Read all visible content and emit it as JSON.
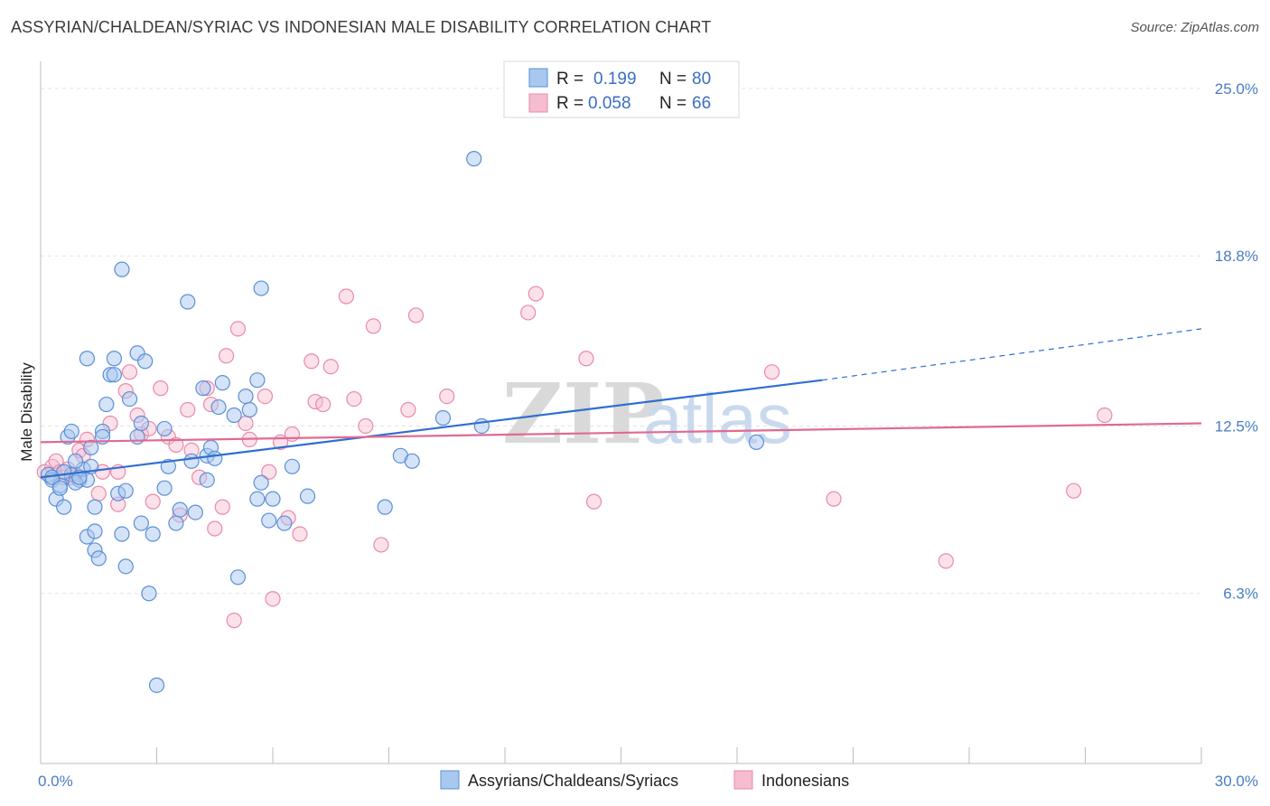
{
  "header": {
    "title": "ASSYRIAN/CHALDEAN/SYRIAC VS INDONESIAN MALE DISABILITY CORRELATION CHART",
    "source": "Source: ZipAtlas.com"
  },
  "watermark": {
    "zip": "ZIP",
    "atlas": "atlas"
  },
  "colors": {
    "blue_fill": "#a9c8f0",
    "blue_stroke": "#5b8fd6",
    "blue_line": "#2f6fcf",
    "pink_fill": "#f6bcd0",
    "pink_stroke": "#e88aaa",
    "pink_line": "#e06a92",
    "grid": "#e3e3e3",
    "tick_text": "#4a7cc4"
  },
  "legend": {
    "rows": [
      {
        "r_label": "R =",
        "r_value": "0.199",
        "n_label": "N =",
        "n_value": "80"
      },
      {
        "r_label": "R =",
        "r_value": "0.058",
        "n_label": "N =",
        "n_value": "66"
      }
    ]
  },
  "chart_data": {
    "type": "scatter",
    "title": "ASSYRIAN/CHALDEAN/SYRIAC VS INDONESIAN MALE DISABILITY CORRELATION CHART",
    "ylabel": "Male Disability",
    "xlim": [
      0,
      30
    ],
    "ylim": [
      0,
      25.6
    ],
    "x_tick_labels": [
      "0.0%",
      "30.0%"
    ],
    "y_ticks": [
      6.3,
      12.5,
      18.8,
      25.0
    ],
    "y_tick_labels": [
      "6.3%",
      "12.5%",
      "18.8%",
      "25.0%"
    ],
    "grid": true,
    "legend_position": "top-center",
    "series": [
      {
        "name": "Assyrians/Chaldeans/Syriacs",
        "color": "#5b8fd6",
        "trend": {
          "x0": 0,
          "y0": 10.6,
          "x1": 20.2,
          "y1": 14.2,
          "dash_x1": 30,
          "dash_y1": 16.1
        },
        "points": [
          [
            0.2,
            10.7
          ],
          [
            0.3,
            10.5
          ],
          [
            0.5,
            10.3
          ],
          [
            0.4,
            9.8
          ],
          [
            0.6,
            9.5
          ],
          [
            0.8,
            10.7
          ],
          [
            1.0,
            10.5
          ],
          [
            1.1,
            10.9
          ],
          [
            1.2,
            10.5
          ],
          [
            0.9,
            10.4
          ],
          [
            0.7,
            12.1
          ],
          [
            0.8,
            12.3
          ],
          [
            1.2,
            8.4
          ],
          [
            1.4,
            7.9
          ],
          [
            1.5,
            7.6
          ],
          [
            1.4,
            9.5
          ],
          [
            1.4,
            8.6
          ],
          [
            1.6,
            12.3
          ],
          [
            1.7,
            13.3
          ],
          [
            1.8,
            14.4
          ],
          [
            1.9,
            14.4
          ],
          [
            1.9,
            15.0
          ],
          [
            1.2,
            15.0
          ],
          [
            1.3,
            11.7
          ],
          [
            2.0,
            10.0
          ],
          [
            2.2,
            10.1
          ],
          [
            2.2,
            7.3
          ],
          [
            2.1,
            8.5
          ],
          [
            2.3,
            13.5
          ],
          [
            2.5,
            12.1
          ],
          [
            2.6,
            12.6
          ],
          [
            2.5,
            15.2
          ],
          [
            2.7,
            14.9
          ],
          [
            2.6,
            8.9
          ],
          [
            2.9,
            8.5
          ],
          [
            2.8,
            6.3
          ],
          [
            3.0,
            2.9
          ],
          [
            3.2,
            10.2
          ],
          [
            3.3,
            11.0
          ],
          [
            3.5,
            8.9
          ],
          [
            3.6,
            9.4
          ],
          [
            3.8,
            17.1
          ],
          [
            3.9,
            11.2
          ],
          [
            4.0,
            9.3
          ],
          [
            4.2,
            13.9
          ],
          [
            4.3,
            11.4
          ],
          [
            4.4,
            11.7
          ],
          [
            4.5,
            11.3
          ],
          [
            4.7,
            14.1
          ],
          [
            5.0,
            12.9
          ],
          [
            5.1,
            6.9
          ],
          [
            5.3,
            13.6
          ],
          [
            5.4,
            13.1
          ],
          [
            5.6,
            9.8
          ],
          [
            5.6,
            14.2
          ],
          [
            5.7,
            10.4
          ],
          [
            5.9,
            9.0
          ],
          [
            6.0,
            9.8
          ],
          [
            6.3,
            8.9
          ],
          [
            6.5,
            11.0
          ],
          [
            6.9,
            9.9
          ],
          [
            5.7,
            17.6
          ],
          [
            1.6,
            12.1
          ],
          [
            2.1,
            18.3
          ],
          [
            3.2,
            12.4
          ],
          [
            8.9,
            9.5
          ],
          [
            9.3,
            11.4
          ],
          [
            9.6,
            11.2
          ],
          [
            10.4,
            12.8
          ],
          [
            11.4,
            12.5
          ],
          [
            11.2,
            22.4
          ],
          [
            18.5,
            11.9
          ],
          [
            0.3,
            10.6
          ],
          [
            0.5,
            10.2
          ],
          [
            0.6,
            10.8
          ],
          [
            1.0,
            10.6
          ],
          [
            1.3,
            11.0
          ],
          [
            4.3,
            10.5
          ],
          [
            0.9,
            11.2
          ],
          [
            4.6,
            13.2
          ]
        ]
      },
      {
        "name": "Indonesians",
        "color": "#e88aaa",
        "trend": {
          "x0": 0,
          "y0": 11.9,
          "x1": 30,
          "y1": 12.6
        },
        "points": [
          [
            0.1,
            10.8
          ],
          [
            0.3,
            11.0
          ],
          [
            0.4,
            11.2
          ],
          [
            0.5,
            10.8
          ],
          [
            0.6,
            10.6
          ],
          [
            0.7,
            10.9
          ],
          [
            0.8,
            10.6
          ],
          [
            0.9,
            10.7
          ],
          [
            1.0,
            11.6
          ],
          [
            1.1,
            11.4
          ],
          [
            1.2,
            12.0
          ],
          [
            1.5,
            10.0
          ],
          [
            1.8,
            12.6
          ],
          [
            2.0,
            10.8
          ],
          [
            2.2,
            13.8
          ],
          [
            2.3,
            14.5
          ],
          [
            2.5,
            12.9
          ],
          [
            2.6,
            12.2
          ],
          [
            2.8,
            12.4
          ],
          [
            2.9,
            9.7
          ],
          [
            3.1,
            13.9
          ],
          [
            3.3,
            12.1
          ],
          [
            3.5,
            11.8
          ],
          [
            3.6,
            9.2
          ],
          [
            3.8,
            13.1
          ],
          [
            3.9,
            11.6
          ],
          [
            4.1,
            10.6
          ],
          [
            4.3,
            13.9
          ],
          [
            4.4,
            13.3
          ],
          [
            4.5,
            8.7
          ],
          [
            4.7,
            9.5
          ],
          [
            4.8,
            15.1
          ],
          [
            5.0,
            5.3
          ],
          [
            5.1,
            16.1
          ],
          [
            5.3,
            12.6
          ],
          [
            5.4,
            12.0
          ],
          [
            5.8,
            13.6
          ],
          [
            5.9,
            10.8
          ],
          [
            6.0,
            6.1
          ],
          [
            6.2,
            11.9
          ],
          [
            6.5,
            12.2
          ],
          [
            6.4,
            9.1
          ],
          [
            6.7,
            8.5
          ],
          [
            7.0,
            14.9
          ],
          [
            7.1,
            13.4
          ],
          [
            7.3,
            13.3
          ],
          [
            7.5,
            14.7
          ],
          [
            7.9,
            17.3
          ],
          [
            8.1,
            13.5
          ],
          [
            8.4,
            12.5
          ],
          [
            8.6,
            16.2
          ],
          [
            8.8,
            8.1
          ],
          [
            9.5,
            13.1
          ],
          [
            9.7,
            16.6
          ],
          [
            10.5,
            13.6
          ],
          [
            12.6,
            16.7
          ],
          [
            12.8,
            17.4
          ],
          [
            14.1,
            15.0
          ],
          [
            14.3,
            9.7
          ],
          [
            18.9,
            14.5
          ],
          [
            20.5,
            9.8
          ],
          [
            23.4,
            7.5
          ],
          [
            26.7,
            10.1
          ],
          [
            27.5,
            12.9
          ],
          [
            1.6,
            10.8
          ],
          [
            2.0,
            9.6
          ]
        ]
      }
    ]
  },
  "bottom_legend": {
    "items": [
      {
        "label": "Assyrians/Chaldeans/Syriacs"
      },
      {
        "label": "Indonesians"
      }
    ]
  }
}
